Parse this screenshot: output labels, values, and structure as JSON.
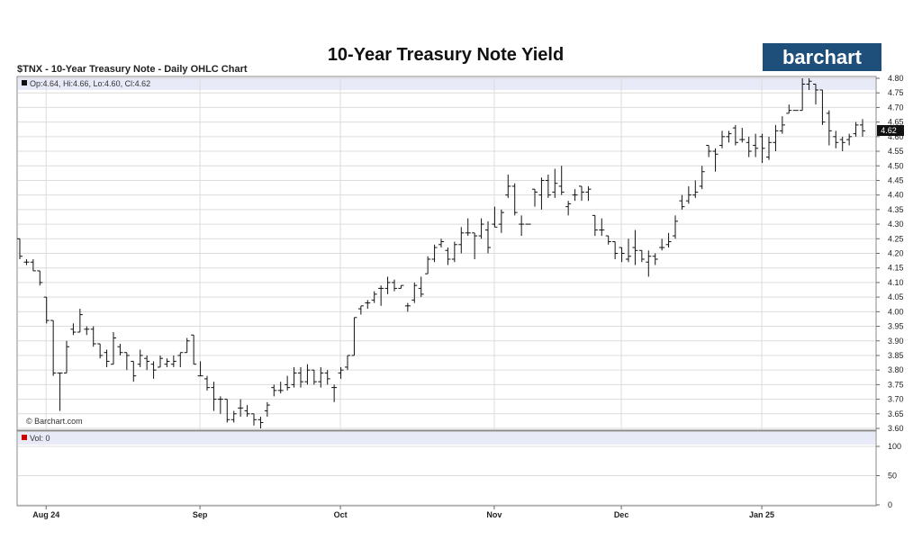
{
  "chart_data": {
    "type": "ohlc",
    "title": "10-Year Treasury Note Yield",
    "subtitle": "$TNX - 10-Year Treasury Note - Daily OHLC Chart",
    "brand": "barchart",
    "copyright": "© Barchart.com",
    "ohlc_label": "Op:4.64, Hi:4.66, Lo:4.60, Cl:4.62",
    "last_value_label": "4.62",
    "ylim": [
      3.6,
      4.8
    ],
    "y_ticks": [
      3.6,
      3.65,
      3.7,
      3.75,
      3.8,
      3.85,
      3.9,
      3.95,
      4.0,
      4.05,
      4.1,
      4.15,
      4.2,
      4.25,
      4.3,
      4.35,
      4.4,
      4.45,
      4.5,
      4.55,
      4.6,
      4.65,
      4.7,
      4.75,
      4.8
    ],
    "y_tick_labels": [
      "3.60",
      "3.65",
      "3.70",
      "3.75",
      "3.80",
      "3.85",
      "3.90",
      "3.95",
      "4.00",
      "4.05",
      "4.10",
      "4.15",
      "4.20",
      "4.25",
      "4.30",
      "4.35",
      "4.40",
      "4.45",
      "4.50",
      "4.55",
      "4.60",
      "4.65",
      "4.70",
      "4.75",
      "4.80"
    ],
    "x_labels": [
      {
        "label": "Aug 24",
        "index": 4
      },
      {
        "label": "Sep",
        "index": 27
      },
      {
        "label": "Oct",
        "index": 48
      },
      {
        "label": "Nov",
        "index": 71
      },
      {
        "label": "Dec",
        "index": 90
      },
      {
        "label": "Jan 25",
        "index": 111
      }
    ],
    "volume_label": "Vol: 0",
    "volume_ticks": [
      0,
      50,
      100
    ],
    "volume_tick_labels": [
      "0",
      "50",
      "100"
    ],
    "colors": {
      "bar": "#111111",
      "band": "#e8eaf8",
      "grid": "#dcdcdc",
      "brand_bg": "#1d4f7a",
      "vol_marker": "#cc0000"
    },
    "bars": [
      [
        4.25,
        4.25,
        4.18,
        4.19
      ],
      [
        4.17,
        4.18,
        4.16,
        4.17
      ],
      [
        4.17,
        4.18,
        4.14,
        4.14
      ],
      [
        4.14,
        4.14,
        4.09,
        4.1
      ],
      [
        4.05,
        4.05,
        3.96,
        3.97
      ],
      [
        3.97,
        3.97,
        3.78,
        3.79
      ],
      [
        3.79,
        3.79,
        3.66,
        3.79
      ],
      [
        3.79,
        3.9,
        3.79,
        3.88
      ],
      [
        3.94,
        3.96,
        3.92,
        3.93
      ],
      [
        3.93,
        4.01,
        3.93,
        3.99
      ],
      [
        3.94,
        3.95,
        3.92,
        3.94
      ],
      [
        3.94,
        3.95,
        3.88,
        3.89
      ],
      [
        3.89,
        3.89,
        3.84,
        3.85
      ],
      [
        3.86,
        3.87,
        3.81,
        3.83
      ],
      [
        3.82,
        3.93,
        3.82,
        3.91
      ],
      [
        3.88,
        3.89,
        3.85,
        3.86
      ],
      [
        3.86,
        3.86,
        3.8,
        3.85
      ],
      [
        3.83,
        3.83,
        3.76,
        3.78
      ],
      [
        3.82,
        3.87,
        3.81,
        3.85
      ],
      [
        3.84,
        3.85,
        3.8,
        3.83
      ],
      [
        3.82,
        3.83,
        3.77,
        3.8
      ],
      [
        3.81,
        3.85,
        3.81,
        3.84
      ],
      [
        3.82,
        3.84,
        3.81,
        3.83
      ],
      [
        3.82,
        3.85,
        3.81,
        3.83
      ],
      [
        3.85,
        3.86,
        3.81,
        3.86
      ],
      [
        3.86,
        3.91,
        3.86,
        3.9
      ],
      [
        3.92,
        3.92,
        3.82,
        3.82
      ],
      [
        3.78,
        3.83,
        3.78,
        3.78
      ],
      [
        3.77,
        3.78,
        3.73,
        3.74
      ],
      [
        3.74,
        3.76,
        3.66,
        3.7
      ],
      [
        3.7,
        3.71,
        3.65,
        3.7
      ],
      [
        3.7,
        3.7,
        3.62,
        3.63
      ],
      [
        3.63,
        3.66,
        3.62,
        3.65
      ],
      [
        3.67,
        3.7,
        3.64,
        3.67
      ],
      [
        3.66,
        3.68,
        3.64,
        3.65
      ],
      [
        3.65,
        3.65,
        3.61,
        3.63
      ],
      [
        3.63,
        3.64,
        3.6,
        3.62
      ],
      [
        3.66,
        3.69,
        3.64,
        3.68
      ],
      [
        3.74,
        3.75,
        3.71,
        3.73
      ],
      [
        3.73,
        3.76,
        3.72,
        3.73
      ],
      [
        3.75,
        3.78,
        3.73,
        3.74
      ],
      [
        3.75,
        3.81,
        3.74,
        3.79
      ],
      [
        3.79,
        3.81,
        3.74,
        3.76
      ],
      [
        3.76,
        3.82,
        3.75,
        3.8
      ],
      [
        3.8,
        3.8,
        3.75,
        3.76
      ],
      [
        3.76,
        3.81,
        3.74,
        3.79
      ],
      [
        3.79,
        3.8,
        3.75,
        3.77
      ],
      [
        3.74,
        3.75,
        3.69,
        3.74
      ],
      [
        3.79,
        3.81,
        3.77,
        3.8
      ],
      [
        3.81,
        3.85,
        3.8,
        3.85
      ],
      [
        3.85,
        3.98,
        3.85,
        3.98
      ],
      [
        4.01,
        4.02,
        3.99,
        4.02
      ],
      [
        4.03,
        4.04,
        4.01,
        4.03
      ],
      [
        4.04,
        4.07,
        4.03,
        4.06
      ],
      [
        4.08,
        4.09,
        4.02,
        4.08
      ],
      [
        4.08,
        4.12,
        4.06,
        4.1
      ],
      [
        4.1,
        4.11,
        4.07,
        4.08
      ],
      [
        4.08,
        4.09,
        4.08,
        4.09
      ],
      [
        4.02,
        4.03,
        4.0,
        4.02
      ],
      [
        4.04,
        4.1,
        4.03,
        4.09
      ],
      [
        4.08,
        4.12,
        4.05,
        4.06
      ],
      [
        4.13,
        4.19,
        4.13,
        4.18
      ],
      [
        4.18,
        4.23,
        4.17,
        4.22
      ],
      [
        4.23,
        4.25,
        4.22,
        4.24
      ],
      [
        4.21,
        4.22,
        4.16,
        4.18
      ],
      [
        4.18,
        4.24,
        4.17,
        4.23
      ],
      [
        4.23,
        4.29,
        4.2,
        4.27
      ],
      [
        4.27,
        4.32,
        4.26,
        4.27
      ],
      [
        4.27,
        4.27,
        4.18,
        4.26
      ],
      [
        4.26,
        4.32,
        4.25,
        4.3
      ],
      [
        4.28,
        4.31,
        4.2,
        4.22
      ],
      [
        4.3,
        4.36,
        4.29,
        4.29
      ],
      [
        4.3,
        4.35,
        4.27,
        4.34
      ],
      [
        4.4,
        4.47,
        4.39,
        4.43
      ],
      [
        4.43,
        4.44,
        4.33,
        4.34
      ],
      [
        4.3,
        4.33,
        4.26,
        4.3
      ],
      [
        4.3,
        4.3,
        4.3,
        4.3
      ],
      [
        4.42,
        4.42,
        4.36,
        4.41
      ],
      [
        4.4,
        4.46,
        4.35,
        4.45
      ],
      [
        4.45,
        4.47,
        4.39,
        4.4
      ],
      [
        4.41,
        4.49,
        4.39,
        4.44
      ],
      [
        4.43,
        4.5,
        4.4,
        4.41
      ],
      [
        4.36,
        4.38,
        4.33,
        4.37
      ],
      [
        4.4,
        4.42,
        4.38,
        4.4
      ],
      [
        4.43,
        4.43,
        4.38,
        4.41
      ],
      [
        4.41,
        4.43,
        4.38,
        4.42
      ],
      [
        4.33,
        4.33,
        4.26,
        4.28
      ],
      [
        4.28,
        4.32,
        4.26,
        4.28
      ],
      [
        4.26,
        4.26,
        4.23,
        4.24
      ],
      [
        4.24,
        4.24,
        4.18,
        4.2
      ],
      [
        4.22,
        4.22,
        4.17,
        4.2
      ],
      [
        4.18,
        4.25,
        4.17,
        4.19
      ],
      [
        4.22,
        4.28,
        4.16,
        4.21
      ],
      [
        4.21,
        4.21,
        4.17,
        4.18
      ],
      [
        4.17,
        4.21,
        4.12,
        4.19
      ],
      [
        4.19,
        4.2,
        4.16,
        4.18
      ],
      [
        4.22,
        4.25,
        4.21,
        4.22
      ],
      [
        4.23,
        4.27,
        4.22,
        4.24
      ],
      [
        4.26,
        4.33,
        4.25,
        4.31
      ],
      [
        4.38,
        4.4,
        4.35,
        4.36
      ],
      [
        4.38,
        4.43,
        4.37,
        4.4
      ],
      [
        4.4,
        4.45,
        4.39,
        4.41
      ],
      [
        4.43,
        4.5,
        4.42,
        4.48
      ],
      [
        4.57,
        4.57,
        4.53,
        4.55
      ],
      [
        4.55,
        4.56,
        4.48,
        4.54
      ],
      [
        4.57,
        4.62,
        4.56,
        4.6
      ],
      [
        4.6,
        4.62,
        4.58,
        4.61
      ],
      [
        4.63,
        4.64,
        4.57,
        4.58
      ],
      [
        4.59,
        4.63,
        4.58,
        4.59
      ],
      [
        4.58,
        4.6,
        4.53,
        4.55
      ],
      [
        4.57,
        4.61,
        4.53,
        4.56
      ],
      [
        4.6,
        4.61,
        4.51,
        4.56
      ],
      [
        4.53,
        4.6,
        4.52,
        4.58
      ],
      [
        4.58,
        4.64,
        4.55,
        4.62
      ],
      [
        4.62,
        4.67,
        4.61,
        4.64
      ],
      [
        4.68,
        4.71,
        4.68,
        4.69
      ],
      [
        4.69,
        4.69,
        4.69,
        4.69
      ],
      [
        4.69,
        4.8,
        4.69,
        4.78
      ],
      [
        4.78,
        4.8,
        4.76,
        4.79
      ],
      [
        4.78,
        4.78,
        4.71,
        4.76
      ],
      [
        4.76,
        4.76,
        4.64,
        4.65
      ],
      [
        4.68,
        4.69,
        4.57,
        4.62
      ],
      [
        4.6,
        4.62,
        4.56,
        4.58
      ],
      [
        4.59,
        4.6,
        4.55,
        4.58
      ],
      [
        4.59,
        4.61,
        4.57,
        4.6
      ],
      [
        4.61,
        4.65,
        4.6,
        4.64
      ],
      [
        4.64,
        4.66,
        4.6,
        4.62
      ]
    ]
  }
}
